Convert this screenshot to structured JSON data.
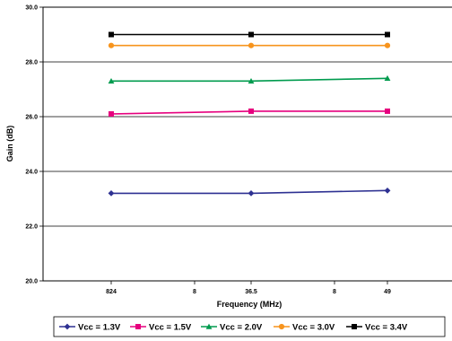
{
  "chart_data": {
    "type": "line",
    "xlabel": "Frequency (MHz)",
    "ylabel": "Gain (dB)",
    "x_categories": [
      "824",
      "8",
      "36.5",
      "8",
      "49"
    ],
    "x_points": [
      0,
      2,
      4
    ],
    "ylim": [
      20.0,
      30.0
    ],
    "y_ticks": [
      "20.0",
      "22.0",
      "24.0",
      "26.0",
      "28.0",
      "30.0"
    ],
    "grid": "horizontal",
    "legend_position": "bottom",
    "series": [
      {
        "name": "Vcc = 1.3V",
        "color": "#2e3192",
        "marker": "diamond",
        "values": [
          23.2,
          23.2,
          23.3
        ]
      },
      {
        "name": "Vcc = 1.5V",
        "color": "#e6007e",
        "marker": "square",
        "values": [
          26.1,
          26.2,
          26.2
        ]
      },
      {
        "name": "Vcc = 2.0V",
        "color": "#009b4e",
        "marker": "triangle",
        "values": [
          27.3,
          27.3,
          27.4
        ]
      },
      {
        "name": "Vcc = 3.0V",
        "color": "#f7941d",
        "marker": "circle",
        "values": [
          28.6,
          28.6,
          28.6
        ]
      },
      {
        "name": "Vcc = 3.4V",
        "color": "#000000",
        "marker": "square",
        "values": [
          29.0,
          29.0,
          29.0
        ]
      }
    ]
  }
}
